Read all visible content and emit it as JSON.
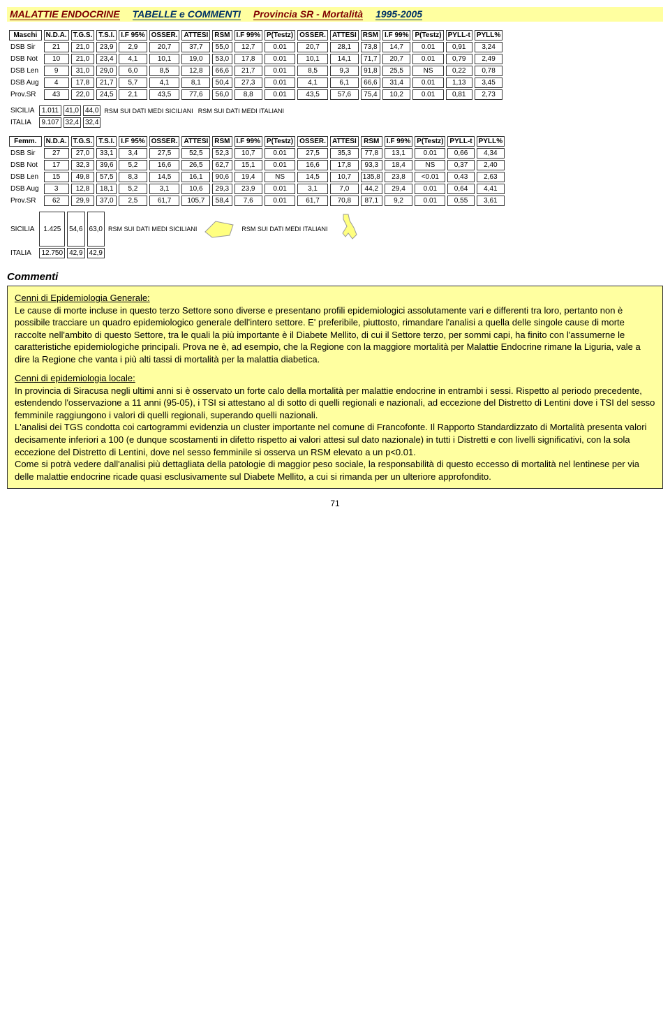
{
  "header": {
    "title": "MALATTIE ENDOCRINE",
    "subtitle": "TABELLE e COMMENTI",
    "province": "Provincia SR - Mortalità",
    "years": "1995-2005"
  },
  "tables": {
    "headers_main": [
      "N.D.A.",
      "T.G.S.",
      "T.S.I.",
      "I.F 95%"
    ],
    "headers_block2": [
      "OSSER.",
      "ATTESI",
      "RSM",
      "I.F 99%",
      "P(Testz)"
    ],
    "headers_block3": [
      "OSSER.",
      "ATTESI",
      "RSM",
      "I.F 99%",
      "P(Testz)"
    ],
    "headers_pyll": [
      "PYLL-t",
      "PYLL%"
    ],
    "rsm_sic": "RSM SUI DATI MEDI SICILIANI",
    "rsm_ita": "RSM SUI DATI MEDI ITALIANI",
    "maschi": {
      "label": "Maschi",
      "rows": [
        {
          "name": "DSB Sir",
          "v": [
            "21",
            "21,0",
            "23,9",
            "2,9",
            "20,7",
            "37,7",
            "55,0",
            "12,7",
            "0.01",
            "20,7",
            "28,1",
            "73,8",
            "14,7",
            "0.01",
            "0,91",
            "3,24"
          ]
        },
        {
          "name": "DSB Not",
          "v": [
            "10",
            "21,0",
            "23,4",
            "4,1",
            "10,1",
            "19,0",
            "53,0",
            "17,8",
            "0.01",
            "10,1",
            "14,1",
            "71,7",
            "20,7",
            "0.01",
            "0,79",
            "2,49"
          ]
        },
        {
          "name": "DSB Len",
          "v": [
            "9",
            "31,0",
            "29,0",
            "6,0",
            "8,5",
            "12,8",
            "66,6",
            "21,7",
            "0.01",
            "8,5",
            "9,3",
            "91,8",
            "25,5",
            "NS",
            "0,22",
            "0,78"
          ]
        },
        {
          "name": "DSB Aug",
          "v": [
            "4",
            "17,8",
            "21,7",
            "5,7",
            "4,1",
            "8,1",
            "50,4",
            "27,3",
            "0.01",
            "4,1",
            "6,1",
            "66,6",
            "31,4",
            "0.01",
            "1,13",
            "3,45"
          ]
        },
        {
          "name": "Prov.SR",
          "v": [
            "43",
            "22,0",
            "24,5",
            "2,1",
            "43,5",
            "77,6",
            "56,0",
            "8,8",
            "0.01",
            "43,5",
            "57,6",
            "75,4",
            "10,2",
            "0.01",
            "0,81",
            "2,73"
          ]
        }
      ],
      "footer": [
        {
          "name": "SICILIA",
          "v": [
            "1.011",
            "41,0",
            "44,0"
          ]
        },
        {
          "name": "ITALIA",
          "v": [
            "9.107",
            "32,4",
            "32,4"
          ]
        }
      ]
    },
    "femm": {
      "label": "Femm.",
      "rows": [
        {
          "name": "DSB Sir",
          "v": [
            "27",
            "27,0",
            "33,1",
            "3,4",
            "27,5",
            "52,5",
            "52,3",
            "10,7",
            "0.01",
            "27,5",
            "35,3",
            "77,8",
            "13,1",
            "0.01",
            "0,66",
            "4,34"
          ]
        },
        {
          "name": "DSB Not",
          "v": [
            "17",
            "32,3",
            "39,6",
            "5,2",
            "16,6",
            "26,5",
            "62,7",
            "15,1",
            "0.01",
            "16,6",
            "17,8",
            "93,3",
            "18,4",
            "NS",
            "0,37",
            "2,40"
          ]
        },
        {
          "name": "DSB Len",
          "v": [
            "15",
            "49,8",
            "57,5",
            "8,3",
            "14,5",
            "16,1",
            "90,6",
            "19,4",
            "NS",
            "14,5",
            "10,7",
            "135,8",
            "23,8",
            "<0.01",
            "0,43",
            "2,63"
          ]
        },
        {
          "name": "DSB Aug",
          "v": [
            "3",
            "12,8",
            "18,1",
            "5,2",
            "3,1",
            "10,6",
            "29,3",
            "23,9",
            "0.01",
            "3,1",
            "7,0",
            "44,2",
            "29,4",
            "0.01",
            "0,64",
            "4,41"
          ]
        },
        {
          "name": "Prov.SR",
          "v": [
            "62",
            "29,9",
            "37,0",
            "2,5",
            "61,7",
            "105,7",
            "58,4",
            "7,6",
            "0.01",
            "61,7",
            "70,8",
            "87,1",
            "9,2",
            "0.01",
            "0,55",
            "3,61"
          ]
        }
      ],
      "footer": [
        {
          "name": "SICILIA",
          "v": [
            "1.425",
            "54,6",
            "63,0"
          ]
        },
        {
          "name": "ITALIA",
          "v": [
            "12.750",
            "42,9",
            "42,9"
          ]
        }
      ]
    }
  },
  "commenti": {
    "title": "Commenti",
    "sec1_head": "Cenni di Epidemiologia Generale:",
    "sec1_body": "Le cause di morte incluse in questo terzo Settore sono diverse e presentano profili epidemiologici assolutamente vari e differenti tra loro, pertanto non è possibile tracciare un quadro epidemiologico generale dell'intero settore. E' preferibile, piuttosto, rimandare l'analisi a quella delle singole cause di morte raccolte nell'ambito di questo Settore, tra le quali la più importante è il Diabete Mellito, di cui il Settore terzo, per sommi capi, ha finito con l'assumerne le caratteristiche epidemiologiche principali. Prova ne è, ad esempio, che la Regione con la maggiore mortalità per Malattie Endocrine rimane la Liguria, vale a dire la Regione che vanta i più alti tassi di mortalità per la malattia diabetica.",
    "sec2_head": "Cenni di epidemiologia locale:",
    "sec2_p1": "In provincia di Siracusa negli ultimi anni si è osservato un forte calo della mortalità per malattie endocrine in entrambi i sessi. Rispetto al periodo precedente, estendendo l'osservazione a 11 anni (95-05), i TSI si attestano al di sotto di quelli regionali e nazionali, ad eccezione del Distretto di Lentini dove i TSI del sesso femminile raggiungono i valori di quelli regionali, superando quelli nazionali.",
    "sec2_p2": "L'analisi dei TGS condotta coi cartogrammi evidenzia un cluster importante nel comune di Francofonte. Il Rapporto Standardizzato di Mortalità presenta valori decisamente inferiori a 100 (e dunque scostamenti in difetto rispetto ai valori attesi sul dato nazionale) in tutti i Distretti e con livelli significativi, con la sola eccezione del Distretto di Lentini, dove nel sesso femminile si osserva un RSM elevato a un p<0.01.",
    "sec2_p3": "Come si potrà vedere dall'analisi più dettagliata della patologie di maggior peso sociale, la responsabilità di questo eccesso di mortalità nel lentinese per via delle malattie endocrine ricade quasi esclusivamente sul Diabete Mellito, a cui si rimanda per un ulteriore approfondito.",
    "pagenum": "71"
  },
  "colors": {
    "highlight_bg": "#ffffa0",
    "maroon": "#800000",
    "navy": "#003366",
    "border": "#333333"
  }
}
